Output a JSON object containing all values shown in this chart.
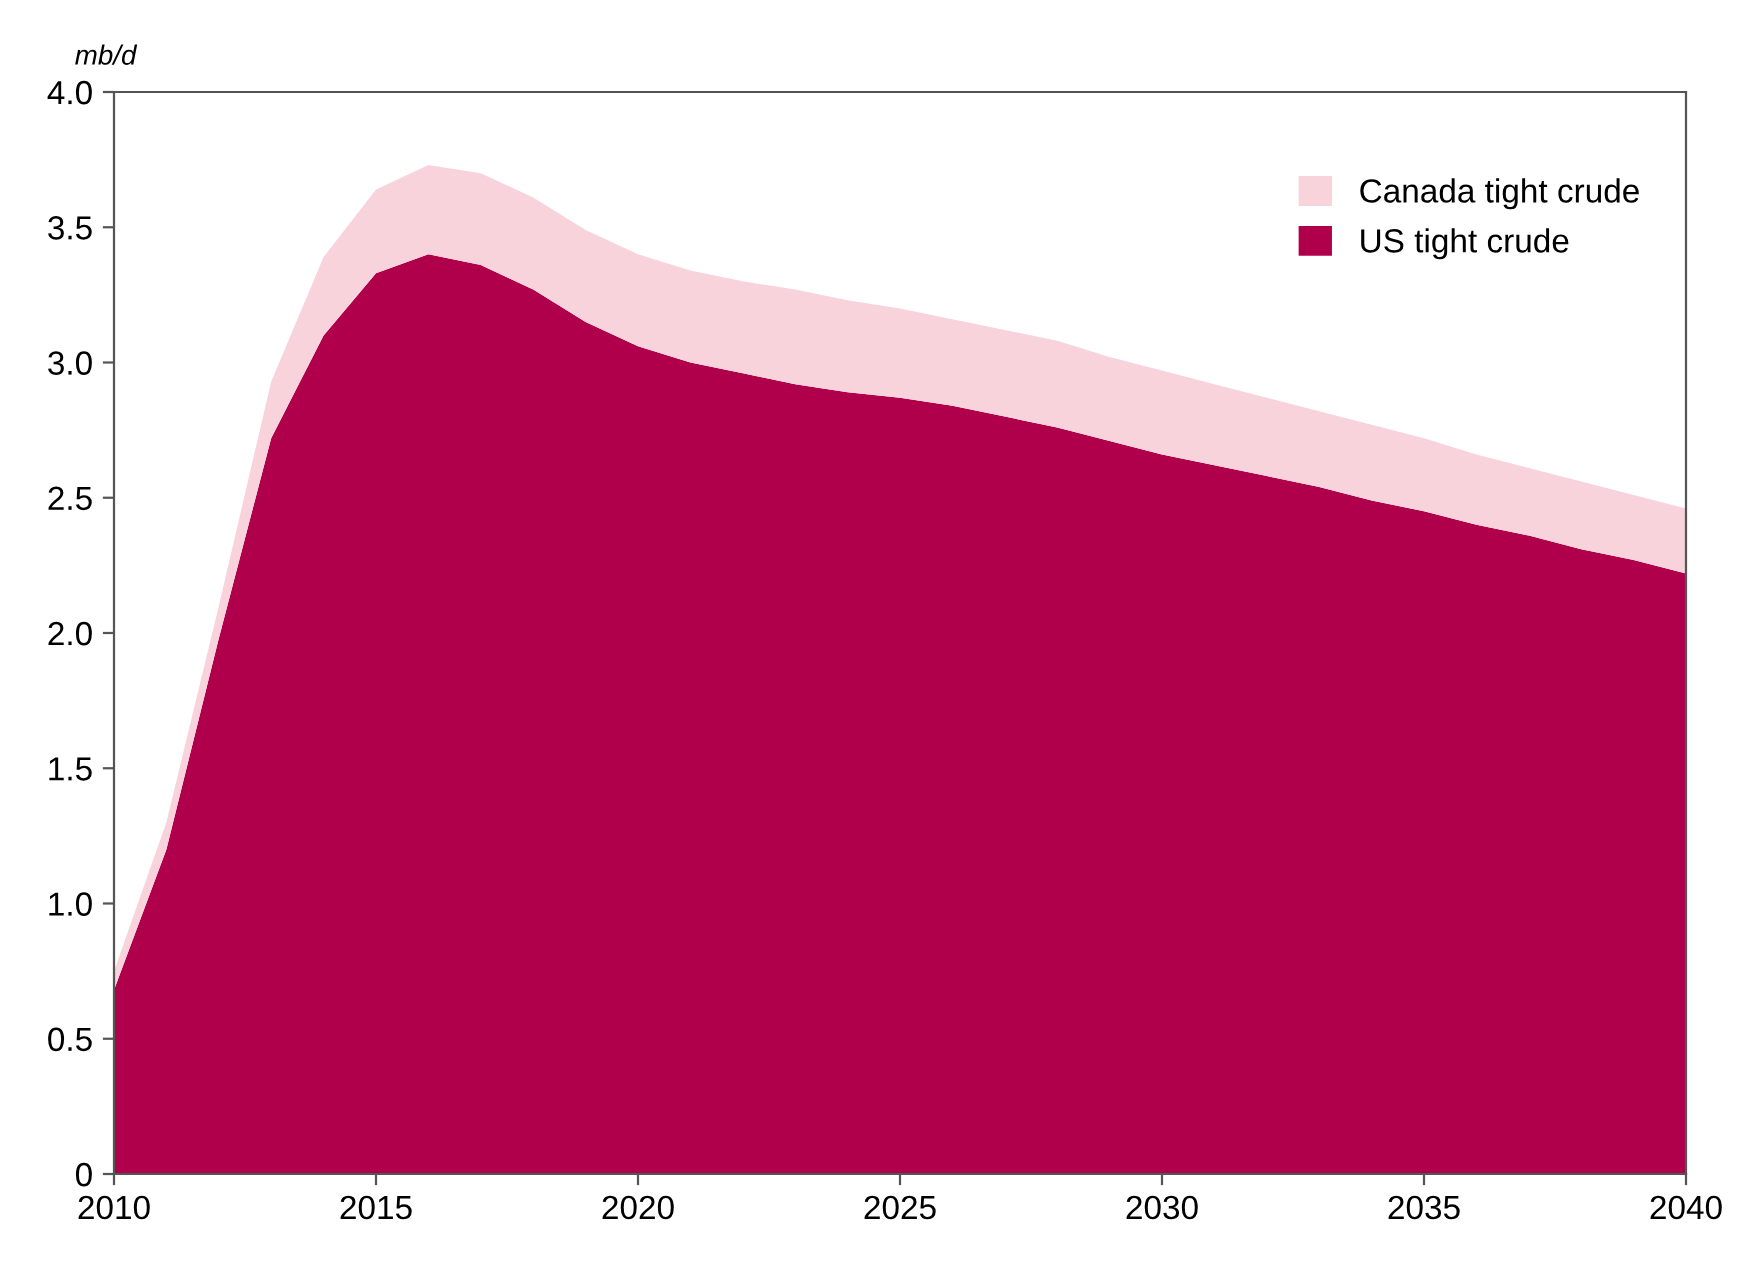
{
  "chart_data": {
    "type": "area",
    "stacked": true,
    "ylabel": "mb/d",
    "x": [
      2010,
      2011,
      2012,
      2013,
      2014,
      2015,
      2016,
      2017,
      2018,
      2019,
      2020,
      2021,
      2022,
      2023,
      2024,
      2025,
      2026,
      2027,
      2028,
      2029,
      2030,
      2031,
      2032,
      2033,
      2034,
      2035,
      2036,
      2037,
      2038,
      2039,
      2040
    ],
    "series": [
      {
        "name": "US tight crude",
        "color": "#b0004b",
        "values": [
          0.68,
          1.2,
          1.98,
          2.72,
          3.1,
          3.33,
          3.4,
          3.36,
          3.27,
          3.15,
          3.06,
          3.0,
          2.96,
          2.92,
          2.89,
          2.87,
          2.84,
          2.8,
          2.76,
          2.71,
          2.66,
          2.62,
          2.58,
          2.54,
          2.49,
          2.45,
          2.4,
          2.36,
          2.31,
          2.27,
          2.22
        ]
      },
      {
        "name": "Canada tight crude",
        "color": "#f8d3dc",
        "values": [
          0.07,
          0.1,
          0.12,
          0.21,
          0.29,
          0.31,
          0.33,
          0.34,
          0.34,
          0.34,
          0.34,
          0.34,
          0.34,
          0.35,
          0.34,
          0.33,
          0.32,
          0.32,
          0.32,
          0.31,
          0.31,
          0.3,
          0.29,
          0.28,
          0.28,
          0.27,
          0.26,
          0.25,
          0.25,
          0.24,
          0.24
        ]
      }
    ],
    "xlim": [
      2010,
      2040
    ],
    "xticks": [
      2010,
      2015,
      2020,
      2025,
      2030,
      2035,
      2040
    ],
    "ylim": [
      0,
      4.0
    ],
    "yticks": [
      0,
      0.5,
      {
        "value": 1,
        "label": "1.0"
      },
      1.5,
      {
        "value": 2,
        "label": "2.0"
      },
      2.5,
      {
        "value": 3,
        "label": "3.0"
      },
      3.5,
      {
        "value": 4,
        "label": "4.0"
      }
    ],
    "grid": false,
    "legend": "top right"
  }
}
